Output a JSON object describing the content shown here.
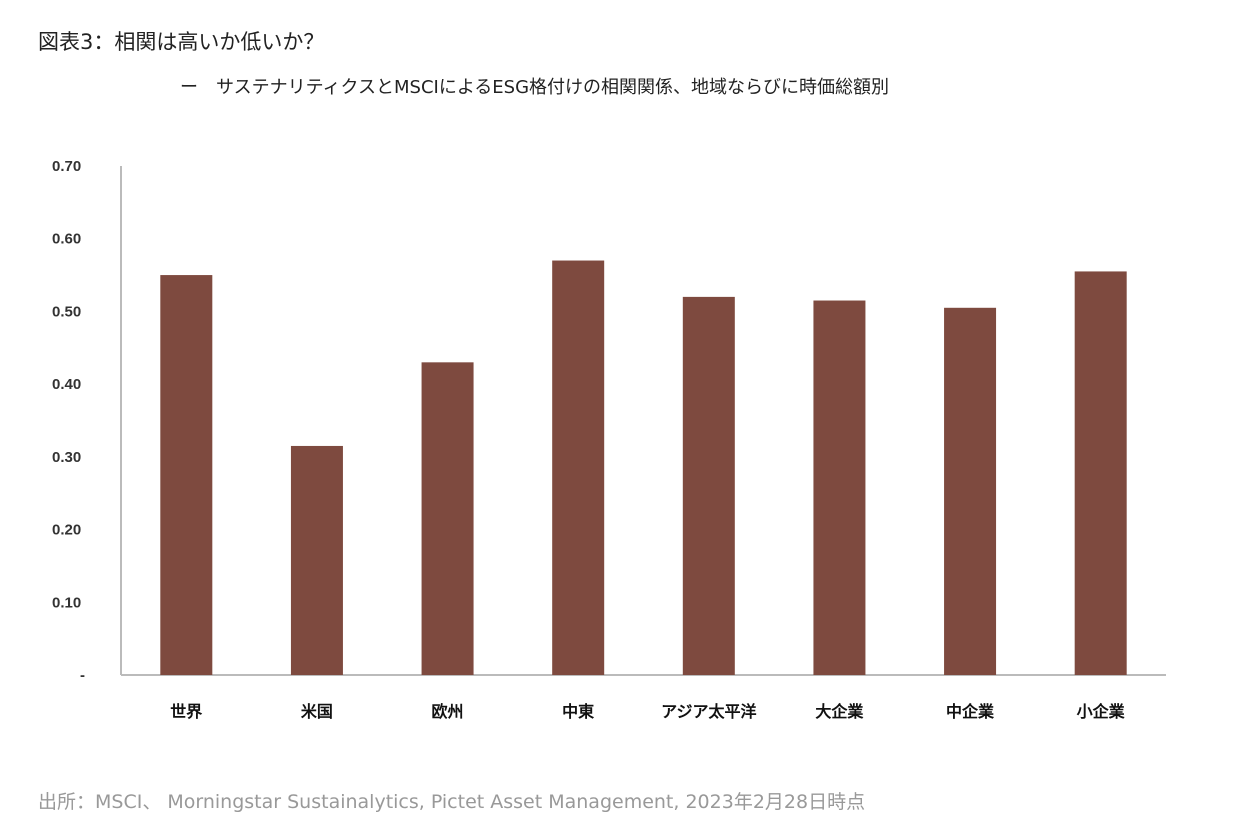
{
  "header": {
    "title": "図表3：相関は高いか低いか？",
    "subtitle": "ー　サステナリティクスとMSCIによるESG格付けの相関関係、地域ならびに時価総額別"
  },
  "footer": {
    "source": "出所：MSCI、 Morningstar Sustainalytics, Pictet Asset Management, 2023年2月28日時点"
  },
  "chart_data": {
    "type": "bar",
    "categories": [
      "世界",
      "米国",
      "欧州",
      "中東",
      "アジア太平洋",
      "大企業",
      "中企業",
      "小企業"
    ],
    "values": [
      0.55,
      0.315,
      0.43,
      0.57,
      0.52,
      0.515,
      0.505,
      0.555
    ],
    "ylim": [
      0,
      0.7
    ],
    "yticks": [
      "-",
      "0.10",
      "0.20",
      "0.30",
      "0.40",
      "0.50",
      "0.60",
      "0.70"
    ],
    "grid": false,
    "bar_color": "#7E4A3F"
  }
}
